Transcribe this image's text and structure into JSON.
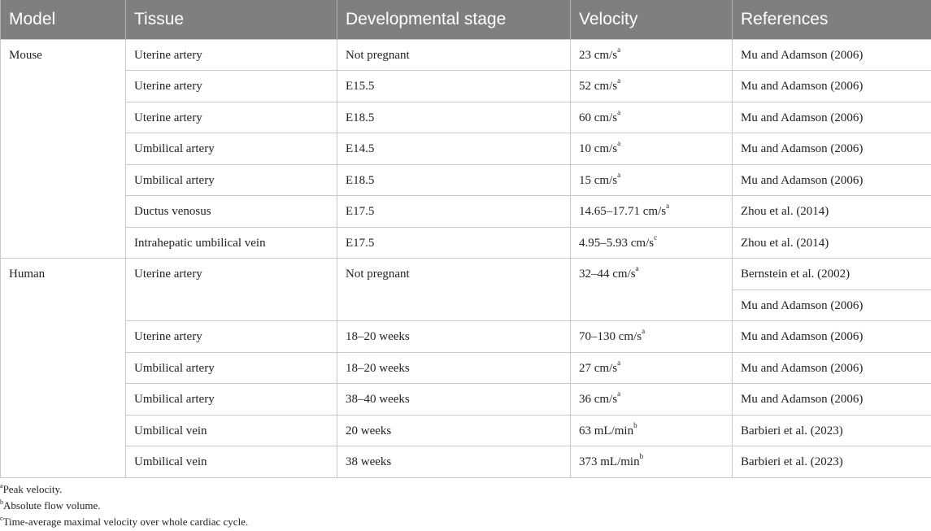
{
  "table": {
    "headers": [
      "Model",
      "Tissue",
      "Developmental stage",
      "Velocity",
      "References"
    ],
    "groups": [
      {
        "model": "Mouse",
        "rows": [
          {
            "tissue": "Uterine artery",
            "stage": "Not pregnant",
            "velocity": "23 cm/s",
            "sup": "a",
            "ref": "Mu and Adamson (2006)"
          },
          {
            "tissue": "Uterine artery",
            "stage": "E15.5",
            "velocity": "52 cm/s",
            "sup": "a",
            "ref": "Mu and Adamson (2006)"
          },
          {
            "tissue": "Uterine artery",
            "stage": "E18.5",
            "velocity": "60 cm/s",
            "sup": "a",
            "ref": "Mu and Adamson (2006)"
          },
          {
            "tissue": "Umbilical artery",
            "stage": "E14.5",
            "velocity": "10 cm/s",
            "sup": "a",
            "ref": "Mu and Adamson (2006)"
          },
          {
            "tissue": "Umbilical artery",
            "stage": "E18.5",
            "velocity": "15 cm/s",
            "sup": "a",
            "ref": "Mu and Adamson (2006)"
          },
          {
            "tissue": "Ductus venosus",
            "stage": "E17.5",
            "velocity": "14.65–17.71 cm/s",
            "sup": "a",
            "ref": "Zhou et al. (2014)"
          },
          {
            "tissue": "Intrahepatic umbilical vein",
            "stage": "E17.5",
            "velocity": "4.95–5.93 cm/s",
            "sup": "c",
            "ref": "Zhou et al. (2014)"
          }
        ]
      },
      {
        "model": "Human",
        "rows": [
          {
            "tissue": "Uterine artery",
            "stage": "Not pregnant",
            "velocity": "32–44 cm/s",
            "sup": "a",
            "ref": "Bernstein et al. (2002)",
            "ref2": "Mu and Adamson (2006)"
          },
          {
            "tissue": "Uterine artery",
            "stage": "18–20 weeks",
            "velocity": "70–130 cm/s",
            "sup": "a",
            "ref": "Mu and Adamson (2006)"
          },
          {
            "tissue": "Umbilical artery",
            "stage": "18–20 weeks",
            "velocity": "27 cm/s",
            "sup": "a",
            "ref": "Mu and Adamson (2006)"
          },
          {
            "tissue": "Umbilical artery",
            "stage": "38–40 weeks",
            "velocity": "36 cm/s",
            "sup": "a",
            "ref": "Mu and Adamson (2006)"
          },
          {
            "tissue": "Umbilical vein",
            "stage": "20 weeks",
            "velocity": "63 mL/min",
            "sup": "b",
            "ref": "Barbieri et al. (2023)"
          },
          {
            "tissue": "Umbilical vein",
            "stage": "38 weeks",
            "velocity": "373 mL/min",
            "sup": "b",
            "ref": "Barbieri et al. (2023)"
          }
        ]
      }
    ]
  },
  "footnotes": [
    {
      "mark": "a",
      "text": "Peak velocity."
    },
    {
      "mark": "b",
      "text": "Absolute flow volume."
    },
    {
      "mark": "c",
      "text": "Time-average maximal velocity over whole cardiac cycle."
    }
  ],
  "colors": {
    "header_bg": "#7f7f7f",
    "header_text": "#ffffff",
    "grid": "#c8c8c8"
  }
}
